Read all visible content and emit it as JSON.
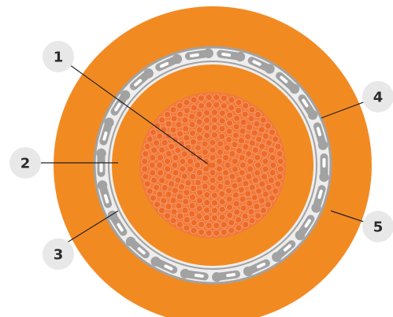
{
  "colors": {
    "outer_sheath": "#f28a22",
    "insulation": "#f28a22",
    "screen_band": "#ededed",
    "screen_tape": "#a2a2a2",
    "screen_gap": "#ffffff",
    "conductor_base": "#f07a3c",
    "strand": "#ee6a26",
    "strand_edge": "#f6a57b",
    "callout_circle": "#e8e8e8",
    "leader": "#222222"
  },
  "callouts": [
    {
      "number": "1"
    },
    {
      "number": "2"
    },
    {
      "number": "3"
    },
    {
      "number": "4"
    },
    {
      "number": "5"
    }
  ]
}
